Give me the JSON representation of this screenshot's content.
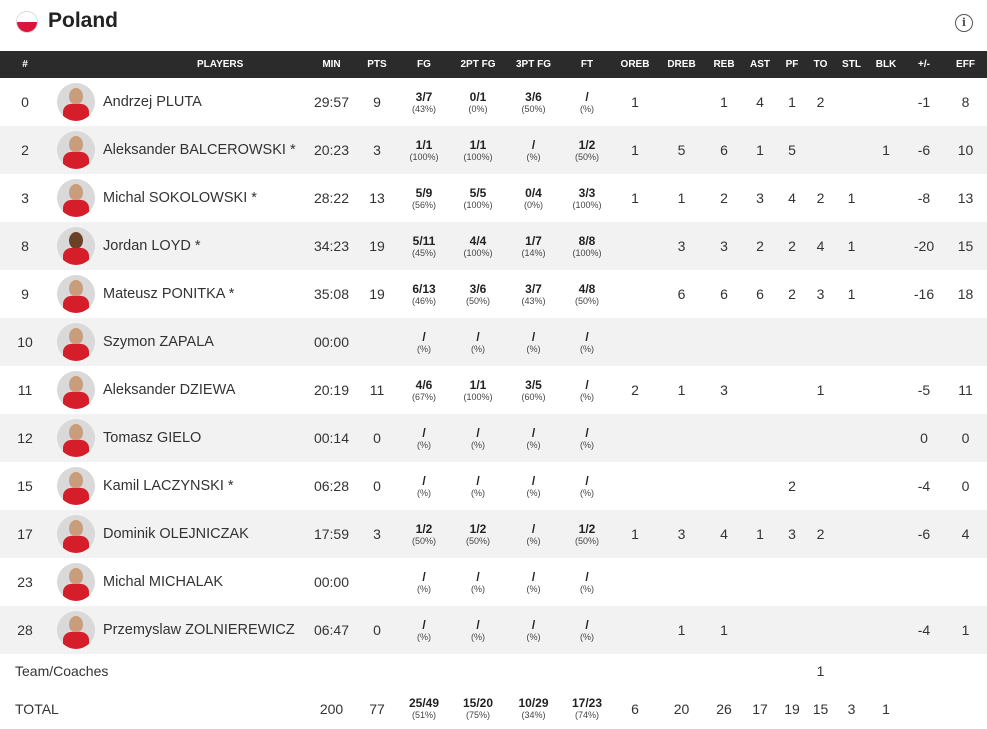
{
  "team": {
    "name": "Poland",
    "flag_colors": [
      "#ffffff",
      "#dc143c"
    ],
    "info_icon": "info-icon"
  },
  "columns": [
    "#",
    "PLAYERS",
    "MIN",
    "PTS",
    "FG",
    "2PT FG",
    "3PT FG",
    "FT",
    "OREB",
    "DREB",
    "REB",
    "AST",
    "PF",
    "TO",
    "STL",
    "BLK",
    "+/-",
    "EFF"
  ],
  "players": [
    {
      "num": "0",
      "name": "Andrzej PLUTA",
      "min": "29:57",
      "pts": "9",
      "fg": {
        "m": "3/7",
        "p": "(43%)"
      },
      "fg2": {
        "m": "0/1",
        "p": "(0%)"
      },
      "fg3": {
        "m": "3/6",
        "p": "(50%)"
      },
      "ft": {
        "m": "/",
        "p": "(%)"
      },
      "oreb": "1",
      "dreb": "",
      "reb": "1",
      "ast": "4",
      "pf": "1",
      "to": "2",
      "stl": "",
      "blk": "",
      "pm": "-1",
      "eff": "8",
      "dark": false
    },
    {
      "num": "2",
      "name": "Aleksander BALCEROWSKI *",
      "min": "20:23",
      "pts": "3",
      "fg": {
        "m": "1/1",
        "p": "(100%)"
      },
      "fg2": {
        "m": "1/1",
        "p": "(100%)"
      },
      "fg3": {
        "m": "/",
        "p": "(%)"
      },
      "ft": {
        "m": "1/2",
        "p": "(50%)"
      },
      "oreb": "1",
      "dreb": "5",
      "reb": "6",
      "ast": "1",
      "pf": "5",
      "to": "",
      "stl": "",
      "blk": "1",
      "pm": "-6",
      "eff": "10",
      "dark": false
    },
    {
      "num": "3",
      "name": "Michal SOKOLOWSKI *",
      "min": "28:22",
      "pts": "13",
      "fg": {
        "m": "5/9",
        "p": "(56%)"
      },
      "fg2": {
        "m": "5/5",
        "p": "(100%)"
      },
      "fg3": {
        "m": "0/4",
        "p": "(0%)"
      },
      "ft": {
        "m": "3/3",
        "p": "(100%)"
      },
      "oreb": "1",
      "dreb": "1",
      "reb": "2",
      "ast": "3",
      "pf": "4",
      "to": "2",
      "stl": "1",
      "blk": "",
      "pm": "-8",
      "eff": "13",
      "dark": false
    },
    {
      "num": "8",
      "name": "Jordan LOYD *",
      "min": "34:23",
      "pts": "19",
      "fg": {
        "m": "5/11",
        "p": "(45%)"
      },
      "fg2": {
        "m": "4/4",
        "p": "(100%)"
      },
      "fg3": {
        "m": "1/7",
        "p": "(14%)"
      },
      "ft": {
        "m": "8/8",
        "p": "(100%)"
      },
      "oreb": "",
      "dreb": "3",
      "reb": "3",
      "ast": "2",
      "pf": "2",
      "to": "4",
      "stl": "1",
      "blk": "",
      "pm": "-20",
      "eff": "15",
      "dark": true
    },
    {
      "num": "9",
      "name": "Mateusz PONITKA *",
      "min": "35:08",
      "pts": "19",
      "fg": {
        "m": "6/13",
        "p": "(46%)"
      },
      "fg2": {
        "m": "3/6",
        "p": "(50%)"
      },
      "fg3": {
        "m": "3/7",
        "p": "(43%)"
      },
      "ft": {
        "m": "4/8",
        "p": "(50%)"
      },
      "oreb": "",
      "dreb": "6",
      "reb": "6",
      "ast": "6",
      "pf": "2",
      "to": "3",
      "stl": "1",
      "blk": "",
      "pm": "-16",
      "eff": "18",
      "dark": false
    },
    {
      "num": "10",
      "name": "Szymon ZAPALA",
      "min": "00:00",
      "pts": "",
      "fg": {
        "m": "/",
        "p": "(%)"
      },
      "fg2": {
        "m": "/",
        "p": "(%)"
      },
      "fg3": {
        "m": "/",
        "p": "(%)"
      },
      "ft": {
        "m": "/",
        "p": "(%)"
      },
      "oreb": "",
      "dreb": "",
      "reb": "",
      "ast": "",
      "pf": "",
      "to": "",
      "stl": "",
      "blk": "",
      "pm": "",
      "eff": "",
      "dark": false
    },
    {
      "num": "11",
      "name": "Aleksander DZIEWA",
      "min": "20:19",
      "pts": "11",
      "fg": {
        "m": "4/6",
        "p": "(67%)"
      },
      "fg2": {
        "m": "1/1",
        "p": "(100%)"
      },
      "fg3": {
        "m": "3/5",
        "p": "(60%)"
      },
      "ft": {
        "m": "/",
        "p": "(%)"
      },
      "oreb": "2",
      "dreb": "1",
      "reb": "3",
      "ast": "",
      "pf": "",
      "to": "1",
      "stl": "",
      "blk": "",
      "pm": "-5",
      "eff": "11",
      "dark": false
    },
    {
      "num": "12",
      "name": "Tomasz GIELO",
      "min": "00:14",
      "pts": "0",
      "fg": {
        "m": "/",
        "p": "(%)"
      },
      "fg2": {
        "m": "/",
        "p": "(%)"
      },
      "fg3": {
        "m": "/",
        "p": "(%)"
      },
      "ft": {
        "m": "/",
        "p": "(%)"
      },
      "oreb": "",
      "dreb": "",
      "reb": "",
      "ast": "",
      "pf": "",
      "to": "",
      "stl": "",
      "blk": "",
      "pm": "0",
      "eff": "0",
      "dark": false
    },
    {
      "num": "15",
      "name": "Kamil LACZYNSKI *",
      "min": "06:28",
      "pts": "0",
      "fg": {
        "m": "/",
        "p": "(%)"
      },
      "fg2": {
        "m": "/",
        "p": "(%)"
      },
      "fg3": {
        "m": "/",
        "p": "(%)"
      },
      "ft": {
        "m": "/",
        "p": "(%)"
      },
      "oreb": "",
      "dreb": "",
      "reb": "",
      "ast": "",
      "pf": "2",
      "to": "",
      "stl": "",
      "blk": "",
      "pm": "-4",
      "eff": "0",
      "dark": false
    },
    {
      "num": "17",
      "name": "Dominik OLEJNICZAK",
      "min": "17:59",
      "pts": "3",
      "fg": {
        "m": "1/2",
        "p": "(50%)"
      },
      "fg2": {
        "m": "1/2",
        "p": "(50%)"
      },
      "fg3": {
        "m": "/",
        "p": "(%)"
      },
      "ft": {
        "m": "1/2",
        "p": "(50%)"
      },
      "oreb": "1",
      "dreb": "3",
      "reb": "4",
      "ast": "1",
      "pf": "3",
      "to": "2",
      "stl": "",
      "blk": "",
      "pm": "-6",
      "eff": "4",
      "dark": false
    },
    {
      "num": "23",
      "name": "Michal MICHALAK",
      "min": "00:00",
      "pts": "",
      "fg": {
        "m": "/",
        "p": "(%)"
      },
      "fg2": {
        "m": "/",
        "p": "(%)"
      },
      "fg3": {
        "m": "/",
        "p": "(%)"
      },
      "ft": {
        "m": "/",
        "p": "(%)"
      },
      "oreb": "",
      "dreb": "",
      "reb": "",
      "ast": "",
      "pf": "",
      "to": "",
      "stl": "",
      "blk": "",
      "pm": "",
      "eff": "",
      "dark": false
    },
    {
      "num": "28",
      "name": "Przemyslaw ZOLNIEREWICZ",
      "min": "06:47",
      "pts": "0",
      "fg": {
        "m": "/",
        "p": "(%)"
      },
      "fg2": {
        "m": "/",
        "p": "(%)"
      },
      "fg3": {
        "m": "/",
        "p": "(%)"
      },
      "ft": {
        "m": "/",
        "p": "(%)"
      },
      "oreb": "",
      "dreb": "1",
      "reb": "1",
      "ast": "",
      "pf": "",
      "to": "",
      "stl": "",
      "blk": "",
      "pm": "-4",
      "eff": "1",
      "dark": false
    }
  ],
  "team_row": {
    "label": "Team/Coaches",
    "to": "1"
  },
  "total": {
    "label": "TOTAL",
    "min": "200",
    "pts": "77",
    "fg": {
      "m": "25/49",
      "p": "(51%)"
    },
    "fg2": {
      "m": "15/20",
      "p": "(75%)"
    },
    "fg3": {
      "m": "10/29",
      "p": "(34%)"
    },
    "ft": {
      "m": "17/23",
      "p": "(74%)"
    },
    "oreb": "6",
    "dreb": "20",
    "reb": "26",
    "ast": "17",
    "pf": "19",
    "to": "15",
    "stl": "3",
    "blk": "1"
  }
}
